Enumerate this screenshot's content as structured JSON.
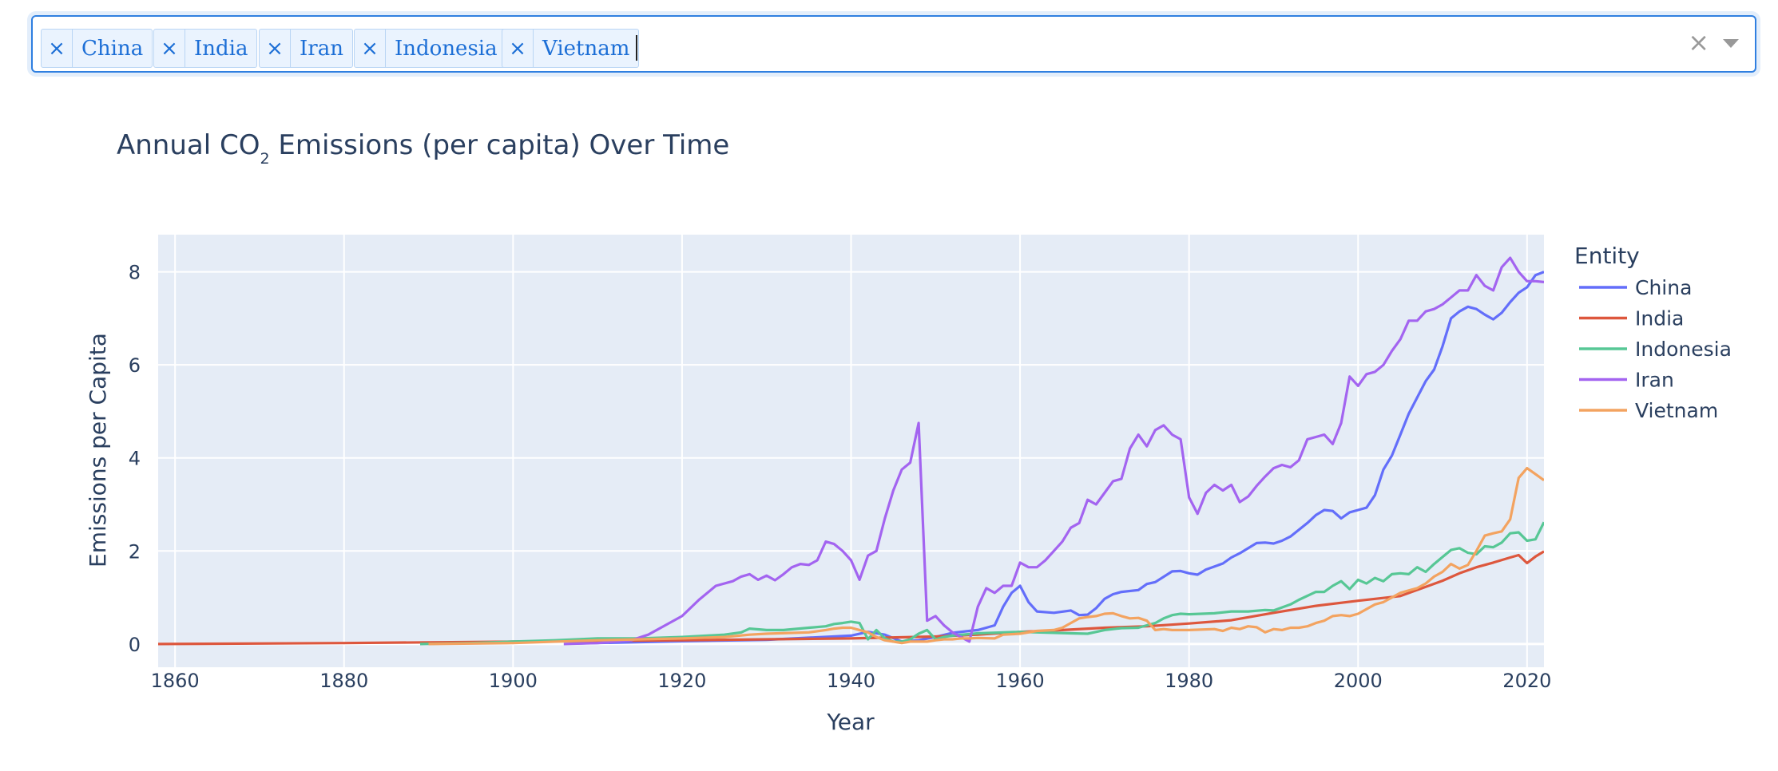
{
  "selector": {
    "chips": [
      "China",
      "India",
      "Iran",
      "Indonesia",
      "Vietnam"
    ],
    "remove_glyph": "×",
    "clear_glyph": "×"
  },
  "chart_data": {
    "type": "line",
    "title": "Annual CO",
    "title_sub": "2",
    "title_rest": " Emissions (per capita) Over Time",
    "xlabel": "Year",
    "ylabel": "Emissions per Capita",
    "xlim": [
      1858,
      2022
    ],
    "ylim": [
      -0.5,
      8.8
    ],
    "xticks": [
      1860,
      1880,
      1900,
      1920,
      1940,
      1960,
      1980,
      2000,
      2020
    ],
    "yticks": [
      0,
      2,
      4,
      6,
      8
    ],
    "grid": true,
    "legend_title": "Entity",
    "legend_position": "right",
    "background": "#e5ecf6",
    "series": [
      {
        "name": "China",
        "color": "#636efa",
        "x": [
          1907,
          1920,
          1930,
          1940,
          1942,
          1944,
          1946,
          1948,
          1950,
          1952,
          1954,
          1955,
          1956,
          1957,
          1958,
          1959,
          1960,
          1961,
          1962,
          1964,
          1966,
          1967,
          1968,
          1969,
          1970,
          1971,
          1972,
          1974,
          1975,
          1976,
          1978,
          1979,
          1980,
          1981,
          1982,
          1984,
          1985,
          1986,
          1988,
          1989,
          1990,
          1991,
          1992,
          1994,
          1995,
          1996,
          1997,
          1998,
          1999,
          2000,
          2001,
          2002,
          2003,
          2004,
          2005,
          2006,
          2007,
          2008,
          2009,
          2010,
          2011,
          2012,
          2013,
          2014,
          2015,
          2016,
          2017,
          2018,
          2019,
          2020,
          2021,
          2022
        ],
        "y": [
          0.01,
          0.06,
          0.09,
          0.18,
          0.26,
          0.2,
          0.05,
          0.08,
          0.15,
          0.24,
          0.28,
          0.3,
          0.35,
          0.4,
          0.8,
          1.1,
          1.25,
          0.9,
          0.7,
          0.67,
          0.72,
          0.62,
          0.63,
          0.77,
          0.97,
          1.07,
          1.12,
          1.16,
          1.29,
          1.33,
          1.56,
          1.57,
          1.52,
          1.49,
          1.6,
          1.73,
          1.86,
          1.95,
          2.17,
          2.18,
          2.16,
          2.22,
          2.31,
          2.6,
          2.77,
          2.88,
          2.86,
          2.7,
          2.83,
          2.88,
          2.93,
          3.2,
          3.75,
          4.05,
          4.5,
          4.95,
          5.3,
          5.65,
          5.9,
          6.4,
          7.0,
          7.15,
          7.25,
          7.2,
          7.08,
          6.98,
          7.12,
          7.35,
          7.55,
          7.67,
          7.93,
          8.0
        ]
      },
      {
        "name": "India",
        "color": "#dd573d",
        "x": [
          1858,
          1880,
          1900,
          1920,
          1930,
          1940,
          1950,
          1955,
          1960,
          1965,
          1970,
          1975,
          1980,
          1985,
          1990,
          1995,
          2000,
          2005,
          2010,
          2012,
          2014,
          2016,
          2018,
          2019,
          2020,
          2021,
          2022
        ],
        "y": [
          0.0,
          0.02,
          0.05,
          0.08,
          0.1,
          0.12,
          0.16,
          0.2,
          0.26,
          0.3,
          0.35,
          0.38,
          0.44,
          0.51,
          0.67,
          0.82,
          0.93,
          1.03,
          1.36,
          1.52,
          1.65,
          1.75,
          1.86,
          1.91,
          1.74,
          1.88,
          1.99
        ]
      },
      {
        "name": "Indonesia",
        "color": "#57c795",
        "x": [
          1889,
          1895,
          1900,
          1905,
          1910,
          1915,
          1920,
          1925,
          1927,
          1928,
          1930,
          1932,
          1935,
          1937,
          1938,
          1939,
          1940,
          1941,
          1942,
          1943,
          1944,
          1945,
          1946,
          1947,
          1948,
          1949,
          1950,
          1951,
          1952,
          1955,
          1960,
          1962,
          1964,
          1966,
          1968,
          1970,
          1972,
          1974,
          1975,
          1976,
          1977,
          1978,
          1979,
          1980,
          1983,
          1985,
          1987,
          1989,
          1990,
          1992,
          1993,
          1995,
          1996,
          1997,
          1998,
          1999,
          2000,
          2001,
          2002,
          2003,
          2004,
          2005,
          2006,
          2007,
          2008,
          2009,
          2010,
          2011,
          2012,
          2013,
          2014,
          2015,
          2016,
          2017,
          2018,
          2019,
          2020,
          2021,
          2022
        ],
        "y": [
          0.0,
          0.02,
          0.05,
          0.08,
          0.12,
          0.12,
          0.15,
          0.2,
          0.25,
          0.33,
          0.3,
          0.3,
          0.35,
          0.38,
          0.43,
          0.45,
          0.48,
          0.45,
          0.1,
          0.3,
          0.12,
          0.05,
          0.05,
          0.1,
          0.22,
          0.3,
          0.1,
          0.15,
          0.18,
          0.23,
          0.26,
          0.25,
          0.24,
          0.23,
          0.22,
          0.3,
          0.34,
          0.35,
          0.4,
          0.45,
          0.55,
          0.62,
          0.65,
          0.64,
          0.66,
          0.7,
          0.7,
          0.73,
          0.72,
          0.85,
          0.95,
          1.12,
          1.12,
          1.25,
          1.35,
          1.18,
          1.38,
          1.3,
          1.42,
          1.35,
          1.5,
          1.52,
          1.5,
          1.65,
          1.55,
          1.72,
          1.87,
          2.02,
          2.06,
          1.96,
          1.93,
          2.1,
          2.08,
          2.18,
          2.38,
          2.4,
          2.22,
          2.25,
          2.62
        ]
      },
      {
        "name": "Iran",
        "color": "#a364f0",
        "x": [
          1906,
          1910,
          1914,
          1916,
          1918,
          1920,
          1922,
          1924,
          1926,
          1927,
          1928,
          1929,
          1930,
          1931,
          1932,
          1933,
          1934,
          1935,
          1936,
          1937,
          1938,
          1939,
          1940,
          1941,
          1942,
          1943,
          1944,
          1945,
          1946,
          1947,
          1948,
          1949,
          1950,
          1951,
          1952,
          1953,
          1954,
          1955,
          1956,
          1957,
          1958,
          1959,
          1960,
          1961,
          1962,
          1963,
          1964,
          1965,
          1966,
          1967,
          1968,
          1969,
          1970,
          1971,
          1972,
          1973,
          1974,
          1975,
          1976,
          1977,
          1978,
          1979,
          1980,
          1981,
          1982,
          1983,
          1984,
          1985,
          1986,
          1987,
          1988,
          1989,
          1990,
          1991,
          1992,
          1993,
          1994,
          1995,
          1996,
          1997,
          1998,
          1999,
          2000,
          2001,
          2002,
          2003,
          2004,
          2005,
          2006,
          2007,
          2008,
          2009,
          2010,
          2011,
          2012,
          2013,
          2014,
          2015,
          2016,
          2017,
          2018,
          2019,
          2020,
          2021,
          2022
        ],
        "y": [
          0.0,
          0.02,
          0.08,
          0.2,
          0.4,
          0.6,
          0.95,
          1.25,
          1.35,
          1.45,
          1.5,
          1.38,
          1.47,
          1.37,
          1.5,
          1.65,
          1.72,
          1.7,
          1.8,
          2.2,
          2.15,
          2.0,
          1.8,
          1.38,
          1.9,
          2.0,
          2.7,
          3.3,
          3.75,
          3.9,
          4.75,
          0.5,
          0.6,
          0.4,
          0.25,
          0.15,
          0.05,
          0.8,
          1.2,
          1.1,
          1.25,
          1.25,
          1.75,
          1.65,
          1.65,
          1.8,
          2.0,
          2.2,
          2.5,
          2.6,
          3.1,
          3.0,
          3.25,
          3.5,
          3.55,
          4.2,
          4.5,
          4.25,
          4.6,
          4.7,
          4.5,
          4.4,
          3.15,
          2.8,
          3.25,
          3.42,
          3.3,
          3.42,
          3.05,
          3.17,
          3.4,
          3.6,
          3.78,
          3.85,
          3.8,
          3.95,
          4.4,
          4.45,
          4.5,
          4.3,
          4.75,
          5.75,
          5.55,
          5.8,
          5.85,
          6.0,
          6.3,
          6.55,
          6.95,
          6.95,
          7.15,
          7.2,
          7.3,
          7.45,
          7.6,
          7.6,
          7.93,
          7.7,
          7.6,
          8.1,
          8.3,
          8.0,
          7.8,
          7.8,
          7.78
        ]
      },
      {
        "name": "Vietnam",
        "color": "#f3a360",
        "x": [
          1890,
          1900,
          1910,
          1920,
          1925,
          1928,
          1930,
          1935,
          1937,
          1938,
          1939,
          1940,
          1941,
          1942,
          1943,
          1944,
          1945,
          1946,
          1947,
          1948,
          1949,
          1950,
          1951,
          1952,
          1953,
          1954,
          1955,
          1957,
          1958,
          1960,
          1962,
          1964,
          1965,
          1966,
          1967,
          1968,
          1969,
          1970,
          1971,
          1972,
          1973,
          1974,
          1975,
          1976,
          1977,
          1978,
          1980,
          1983,
          1984,
          1985,
          1986,
          1987,
          1988,
          1989,
          1990,
          1991,
          1992,
          1993,
          1994,
          1995,
          1996,
          1997,
          1998,
          1999,
          2000,
          2001,
          2002,
          2003,
          2004,
          2005,
          2006,
          2007,
          2008,
          2009,
          2010,
          2011,
          2012,
          2013,
          2014,
          2015,
          2016,
          2017,
          2018,
          2019,
          2020,
          2021,
          2022
        ],
        "y": [
          0.0,
          0.02,
          0.08,
          0.12,
          0.15,
          0.2,
          0.22,
          0.25,
          0.3,
          0.33,
          0.35,
          0.35,
          0.3,
          0.25,
          0.15,
          0.08,
          0.05,
          0.02,
          0.05,
          0.05,
          0.05,
          0.08,
          0.1,
          0.1,
          0.12,
          0.12,
          0.13,
          0.12,
          0.2,
          0.22,
          0.28,
          0.3,
          0.35,
          0.45,
          0.55,
          0.58,
          0.6,
          0.65,
          0.66,
          0.6,
          0.55,
          0.56,
          0.5,
          0.3,
          0.32,
          0.3,
          0.3,
          0.32,
          0.28,
          0.35,
          0.32,
          0.38,
          0.36,
          0.25,
          0.32,
          0.3,
          0.35,
          0.35,
          0.38,
          0.45,
          0.5,
          0.6,
          0.62,
          0.6,
          0.65,
          0.75,
          0.85,
          0.9,
          1.0,
          1.1,
          1.15,
          1.2,
          1.3,
          1.45,
          1.55,
          1.72,
          1.62,
          1.7,
          2.0,
          2.33,
          2.38,
          2.42,
          2.68,
          3.57,
          3.78,
          3.65,
          3.52
        ]
      }
    ]
  }
}
